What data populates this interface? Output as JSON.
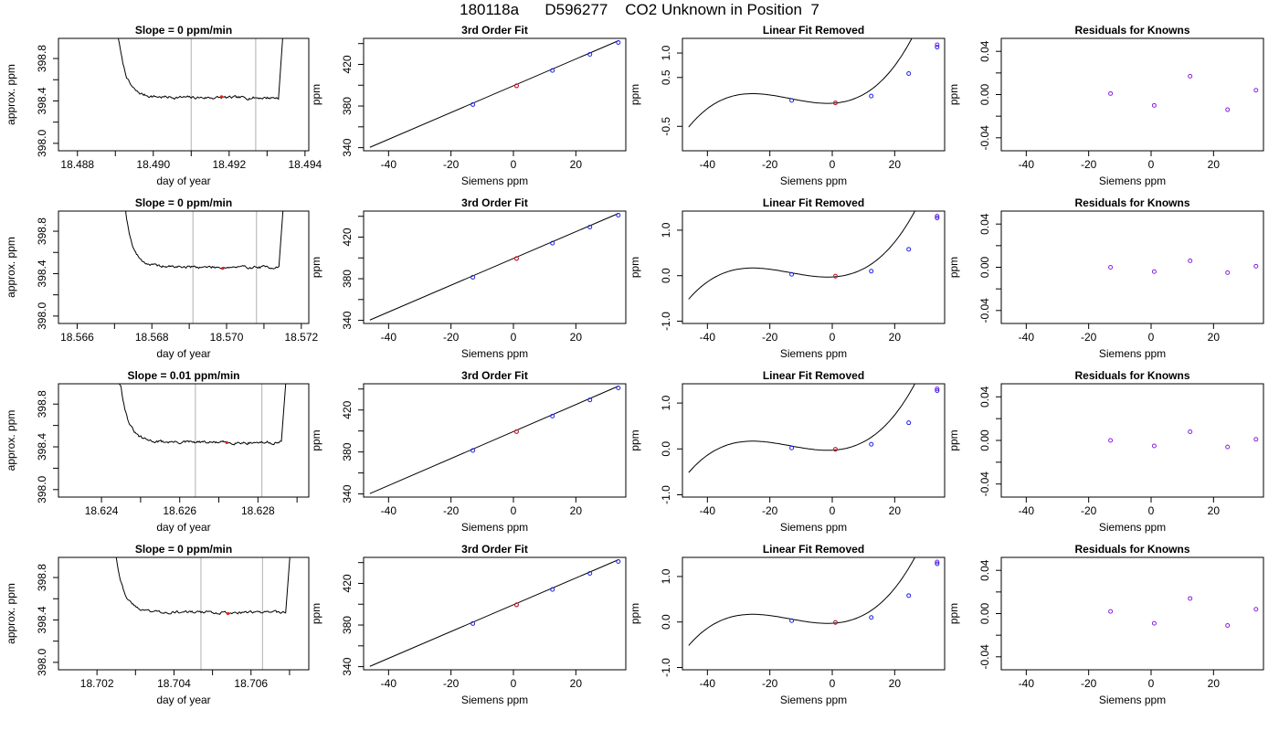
{
  "figure": {
    "title": "180118a      D596277    CO2 Unknown in Position  7"
  },
  "colors": {
    "trace": "#000000",
    "window_lines": "#bdbdbd",
    "fit_line": "#000000",
    "points_blue": "#1f22e6",
    "points_red": "#e0201a",
    "points_purple": "#8b1fe0"
  },
  "chart_data": [
    {
      "type": "line",
      "row": 0,
      "col": 0,
      "title": "Slope =  0  ppm/min",
      "xlabel": "day of year",
      "ylabel": "approx. ppm",
      "xlim": [
        18.4875,
        18.4941
      ],
      "ylim": [
        397.93,
        398.99
      ],
      "xticks": [
        18.488,
        18.49,
        18.492,
        18.494
      ],
      "xtick_labels": [
        "18.488",
        "18.490",
        "18.492",
        "18.494"
      ],
      "xticks_minor": [
        18.489,
        18.491,
        18.493
      ],
      "yticks": [
        398.0,
        398.4,
        398.8
      ],
      "ytick_labels": [
        "398.0",
        "398.4",
        "398.8"
      ],
      "yticks_minor": [
        398.2,
        398.6
      ],
      "vlines": [
        18.491,
        18.4927
      ],
      "highlight_point": [
        18.4918,
        398.44
      ],
      "trace": {
        "start": 18.4891,
        "end": 18.4933,
        "level": 398.43,
        "noise": 0.014,
        "left_edge": 18.48895,
        "right_edge": 18.49345,
        "seed": 7
      }
    },
    {
      "type": "line",
      "row": 1,
      "col": 0,
      "title": "Slope =  0  ppm/min",
      "xlabel": "day of year",
      "ylabel": "approx. ppm",
      "xlim": [
        18.5655,
        18.5722
      ],
      "ylim": [
        397.93,
        398.99
      ],
      "xticks": [
        18.566,
        18.568,
        18.57,
        18.572
      ],
      "xtick_labels": [
        "18.566",
        "18.568",
        "18.570",
        "18.572"
      ],
      "xticks_minor": [
        18.567,
        18.569,
        18.571
      ],
      "yticks": [
        398.0,
        398.4,
        398.8
      ],
      "ytick_labels": [
        "398.0",
        "398.4",
        "398.8"
      ],
      "yticks_minor": [
        398.2,
        398.6
      ],
      "vlines": [
        18.5691,
        18.5708
      ],
      "highlight_point": [
        18.5699,
        398.45
      ],
      "trace": {
        "start": 18.5673,
        "end": 18.5714,
        "level": 398.46,
        "noise": 0.013,
        "left_edge": 18.5669,
        "right_edge": 18.57155,
        "seed": 19
      }
    },
    {
      "type": "line",
      "row": 2,
      "col": 0,
      "title": "Slope =  0.01  ppm/min",
      "xlabel": "day of year",
      "ylabel": "approx. ppm",
      "xlim": [
        18.6229,
        18.6293
      ],
      "ylim": [
        397.93,
        398.99
      ],
      "xticks": [
        18.624,
        18.626,
        18.628
      ],
      "xtick_labels": [
        "18.624",
        "18.626",
        "18.628"
      ],
      "xticks_minor": [
        18.625,
        18.627,
        18.629
      ],
      "yticks": [
        398.0,
        398.4,
        398.8
      ],
      "ytick_labels": [
        "398.0",
        "398.4",
        "398.8"
      ],
      "yticks_minor": [
        398.2,
        398.6
      ],
      "vlines": [
        18.6264,
        18.6281
      ],
      "highlight_point": [
        18.6272,
        398.44
      ],
      "trace": {
        "start": 18.6245,
        "end": 18.6286,
        "level": 398.44,
        "noise": 0.014,
        "left_edge": 18.6241,
        "right_edge": 18.62875,
        "seed": 31
      }
    },
    {
      "type": "line",
      "row": 3,
      "col": 0,
      "title": "Slope =  0  ppm/min",
      "xlabel": "day of year",
      "ylabel": "approx. ppm",
      "xlim": [
        18.701,
        18.7075
      ],
      "ylim": [
        397.93,
        398.99
      ],
      "xticks": [
        18.702,
        18.704,
        18.706
      ],
      "xtick_labels": [
        "18.702",
        "18.704",
        "18.706"
      ],
      "xticks_minor": [
        18.703,
        18.705,
        18.707
      ],
      "yticks": [
        398.0,
        398.4,
        398.8
      ],
      "ytick_labels": [
        "398.0",
        "398.4",
        "398.8"
      ],
      "yticks_minor": [
        398.2,
        398.6
      ],
      "vlines": [
        18.7047,
        18.7063
      ],
      "highlight_point": [
        18.7054,
        398.46
      ],
      "trace": {
        "start": 18.7025,
        "end": 18.7069,
        "level": 398.47,
        "noise": 0.013,
        "left_edge": 18.7021,
        "right_edge": 18.70705,
        "seed": 43
      }
    },
    {
      "type": "scatter",
      "row": 0,
      "col": 1,
      "title": "3rd Order Fit",
      "xlabel": "Siemens ppm",
      "ylabel": "ppm",
      "xlim": [
        -48,
        36
      ],
      "ylim": [
        337,
        445
      ],
      "xticks": [
        -40,
        -20,
        0,
        20
      ],
      "xtick_labels": [
        "-40",
        "-20",
        "0",
        "20"
      ],
      "yticks": [
        340,
        380,
        420
      ],
      "ytick_labels": [
        "340",
        "380",
        "420"
      ],
      "yticks_minor": [
        360,
        400,
        440
      ],
      "line": {
        "x": [
          -46,
          33.6
        ],
        "y": [
          340.3,
          442.7
        ]
      },
      "points": {
        "x": [
          -13,
          1,
          12.5,
          24.5,
          33.6
        ],
        "y": [
          381.4,
          399.4,
          414.2,
          429.6,
          441.1
        ]
      },
      "red_point": [
        1,
        399.4
      ]
    },
    {
      "type": "scatter",
      "row": 1,
      "col": 1,
      "title": "3rd Order Fit",
      "xlabel": "Siemens ppm",
      "ylabel": "ppm",
      "xlim": [
        -48,
        36
      ],
      "ylim": [
        337,
        445
      ],
      "xticks": [
        -40,
        -20,
        0,
        20
      ],
      "xtick_labels": [
        "-40",
        "-20",
        "0",
        "20"
      ],
      "yticks": [
        340,
        380,
        420
      ],
      "ytick_labels": [
        "340",
        "380",
        "420"
      ],
      "yticks_minor": [
        360,
        400,
        440
      ],
      "line": {
        "x": [
          -46,
          33.6
        ],
        "y": [
          340.3,
          442.7
        ]
      },
      "points": {
        "x": [
          -13,
          1,
          12.5,
          24.5,
          33.6
        ],
        "y": [
          381.4,
          399.4,
          414.2,
          429.6,
          441.1
        ]
      },
      "red_point": [
        1,
        399.4
      ]
    },
    {
      "type": "scatter",
      "row": 2,
      "col": 1,
      "title": "3rd Order Fit",
      "xlabel": "Siemens ppm",
      "ylabel": "ppm",
      "xlim": [
        -48,
        36
      ],
      "ylim": [
        337,
        445
      ],
      "xticks": [
        -40,
        -20,
        0,
        20
      ],
      "xtick_labels": [
        "-40",
        "-20",
        "0",
        "20"
      ],
      "yticks": [
        340,
        380,
        420
      ],
      "ytick_labels": [
        "340",
        "380",
        "420"
      ],
      "yticks_minor": [
        360,
        400,
        440
      ],
      "line": {
        "x": [
          -46,
          33.6
        ],
        "y": [
          340.3,
          442.7
        ]
      },
      "points": {
        "x": [
          -13,
          1,
          12.5,
          24.5,
          33.6
        ],
        "y": [
          381.4,
          399.4,
          414.2,
          429.6,
          441.1
        ]
      },
      "red_point": [
        1,
        399.4
      ]
    },
    {
      "type": "scatter",
      "row": 3,
      "col": 1,
      "title": "3rd Order Fit",
      "xlabel": "Siemens ppm",
      "ylabel": "ppm",
      "xlim": [
        -48,
        36
      ],
      "ylim": [
        337,
        445
      ],
      "xticks": [
        -40,
        -20,
        0,
        20
      ],
      "xtick_labels": [
        "-40",
        "-20",
        "0",
        "20"
      ],
      "yticks": [
        340,
        380,
        420
      ],
      "ytick_labels": [
        "340",
        "380",
        "420"
      ],
      "yticks_minor": [
        360,
        400,
        440
      ],
      "line": {
        "x": [
          -46,
          33.6
        ],
        "y": [
          340.3,
          442.7
        ]
      },
      "points": {
        "x": [
          -13,
          1,
          12.5,
          24.5,
          33.6
        ],
        "y": [
          381.4,
          399.4,
          414.2,
          429.6,
          441.1
        ]
      },
      "red_point": [
        1,
        399.4
      ]
    },
    {
      "type": "scatter",
      "row": 0,
      "col": 2,
      "title": "Linear Fit Removed",
      "xlabel": "Siemens ppm",
      "ylabel": "ppm",
      "xlim": [
        -48,
        36
      ],
      "ylim": [
        -1.0,
        1.3
      ],
      "xticks": [
        -40,
        -20,
        0,
        20
      ],
      "xtick_labels": [
        "-40",
        "-20",
        "0",
        "20"
      ],
      "yticks": [
        -0.5,
        0.5,
        1.0
      ],
      "ytick_labels": [
        "-0.5",
        "0.5",
        "1.0"
      ],
      "curve": {
        "x_from": -46,
        "x_to": 33.6,
        "p0": -0.0278,
        "p1": 0.0034,
        "p2": 0.001173,
        "p3": 2.89e-05
      },
      "points": {
        "x": [
          -13,
          1,
          12.5,
          24.5,
          33.6
        ],
        "y": [
          0.03,
          -0.02,
          0.12,
          0.58,
          1.12
        ]
      },
      "purple_point": [
        33.6,
        1.17
      ],
      "red_point": [
        1,
        -0.02
      ]
    },
    {
      "type": "scatter",
      "row": 1,
      "col": 2,
      "title": "Linear Fit Removed",
      "xlabel": "Siemens ppm",
      "ylabel": "ppm",
      "xlim": [
        -48,
        36
      ],
      "ylim": [
        -1.05,
        1.42
      ],
      "xticks": [
        -40,
        -20,
        0,
        20
      ],
      "xtick_labels": [
        "-40",
        "-20",
        "0",
        "20"
      ],
      "yticks": [
        -1.0,
        0.0,
        1.0
      ],
      "ytick_labels": [
        "-1.0",
        "0.0",
        "1.0"
      ],
      "curve": {
        "x_from": -46,
        "x_to": 33.6,
        "p0": -0.0278,
        "p1": 0.0034,
        "p2": 0.001173,
        "p3": 2.89e-05
      },
      "points": {
        "x": [
          -13,
          1,
          12.5,
          24.5,
          33.6
        ],
        "y": [
          0.03,
          -0.01,
          0.1,
          0.58,
          1.27
        ]
      },
      "purple_point": [
        33.6,
        1.31
      ],
      "red_point": [
        1,
        -0.01
      ]
    },
    {
      "type": "scatter",
      "row": 2,
      "col": 2,
      "title": "Linear Fit Removed",
      "xlabel": "Siemens ppm",
      "ylabel": "ppm",
      "xlim": [
        -48,
        36
      ],
      "ylim": [
        -1.05,
        1.42
      ],
      "xticks": [
        -40,
        -20,
        0,
        20
      ],
      "xtick_labels": [
        "-40",
        "-20",
        "0",
        "20"
      ],
      "yticks": [
        -1.0,
        0.0,
        1.0
      ],
      "ytick_labels": [
        "-1.0",
        "0.0",
        "1.0"
      ],
      "curve": {
        "x_from": -46,
        "x_to": 33.6,
        "p0": -0.0278,
        "p1": 0.0034,
        "p2": 0.001173,
        "p3": 2.89e-05
      },
      "points": {
        "x": [
          -13,
          1,
          12.5,
          24.5,
          33.6
        ],
        "y": [
          0.02,
          -0.01,
          0.1,
          0.57,
          1.27
        ]
      },
      "purple_point": [
        33.6,
        1.31
      ],
      "red_point": [
        1,
        -0.01
      ]
    },
    {
      "type": "scatter",
      "row": 3,
      "col": 2,
      "title": "Linear Fit Removed",
      "xlabel": "Siemens ppm",
      "ylabel": "ppm",
      "xlim": [
        -48,
        36
      ],
      "ylim": [
        -1.05,
        1.42
      ],
      "xticks": [
        -40,
        -20,
        0,
        20
      ],
      "xtick_labels": [
        "-40",
        "-20",
        "0",
        "20"
      ],
      "yticks": [
        -1.0,
        0.0,
        1.0
      ],
      "ytick_labels": [
        "-1.0",
        "0.0",
        "1.0"
      ],
      "curve": {
        "x_from": -46,
        "x_to": 33.6,
        "p0": -0.0278,
        "p1": 0.0034,
        "p2": 0.001173,
        "p3": 2.89e-05
      },
      "points": {
        "x": [
          -13,
          1,
          12.5,
          24.5,
          33.6
        ],
        "y": [
          0.03,
          -0.01,
          0.1,
          0.58,
          1.28
        ]
      },
      "purple_point": [
        33.6,
        1.32
      ],
      "red_point": [
        1,
        -0.01
      ]
    },
    {
      "type": "scatter",
      "row": 0,
      "col": 3,
      "title": "Residuals for Knowns",
      "xlabel": "Siemens ppm",
      "ylabel": "ppm",
      "xlim": [
        -48,
        36
      ],
      "ylim": [
        -0.052,
        0.052
      ],
      "xticks": [
        -40,
        -20,
        0,
        20
      ],
      "xtick_labels": [
        "-40",
        "-20",
        "0",
        "20"
      ],
      "yticks": [
        -0.04,
        0.0,
        0.04
      ],
      "ytick_labels": [
        "-0.04",
        "0.00",
        "0.04"
      ],
      "yticks_minor": [
        -0.02,
        0.02
      ],
      "points": {
        "x": [
          -13,
          1,
          12.5,
          24.5,
          33.6
        ],
        "y": [
          0.001,
          -0.01,
          0.017,
          -0.014,
          0.004
        ]
      }
    },
    {
      "type": "scatter",
      "row": 1,
      "col": 3,
      "title": "Residuals for Knowns",
      "xlabel": "Siemens ppm",
      "ylabel": "ppm",
      "xlim": [
        -48,
        36
      ],
      "ylim": [
        -0.052,
        0.052
      ],
      "xticks": [
        -40,
        -20,
        0,
        20
      ],
      "xtick_labels": [
        "-40",
        "-20",
        "0",
        "20"
      ],
      "yticks": [
        -0.04,
        0.0,
        0.04
      ],
      "ytick_labels": [
        "-0.04",
        "0.00",
        "0.04"
      ],
      "yticks_minor": [
        -0.02,
        0.02
      ],
      "points": {
        "x": [
          -13,
          1,
          12.5,
          24.5,
          33.6
        ],
        "y": [
          0.0,
          -0.004,
          0.006,
          -0.005,
          0.001
        ]
      }
    },
    {
      "type": "scatter",
      "row": 2,
      "col": 3,
      "title": "Residuals for Knowns",
      "xlabel": "Siemens ppm",
      "ylabel": "ppm",
      "xlim": [
        -48,
        36
      ],
      "ylim": [
        -0.052,
        0.052
      ],
      "xticks": [
        -40,
        -20,
        0,
        20
      ],
      "xtick_labels": [
        "-40",
        "-20",
        "0",
        "20"
      ],
      "yticks": [
        -0.04,
        0.0,
        0.04
      ],
      "ytick_labels": [
        "-0.04",
        "0.00",
        "0.04"
      ],
      "yticks_minor": [
        -0.02,
        0.02
      ],
      "points": {
        "x": [
          -13,
          1,
          12.5,
          24.5,
          33.6
        ],
        "y": [
          0.0,
          -0.005,
          0.008,
          -0.006,
          0.001
        ]
      }
    },
    {
      "type": "scatter",
      "row": 3,
      "col": 3,
      "title": "Residuals for Knowns",
      "xlabel": "Siemens ppm",
      "ylabel": "ppm",
      "xlim": [
        -48,
        36
      ],
      "ylim": [
        -0.052,
        0.052
      ],
      "xticks": [
        -40,
        -20,
        0,
        20
      ],
      "xtick_labels": [
        "-40",
        "-20",
        "0",
        "20"
      ],
      "yticks": [
        -0.04,
        0.0,
        0.04
      ],
      "ytick_labels": [
        "-0.04",
        "0.00",
        "0.04"
      ],
      "yticks_minor": [
        -0.02,
        0.02
      ],
      "points": {
        "x": [
          -13,
          1,
          12.5,
          24.5,
          33.6
        ],
        "y": [
          0.002,
          -0.009,
          0.014,
          -0.011,
          0.004
        ]
      }
    }
  ]
}
